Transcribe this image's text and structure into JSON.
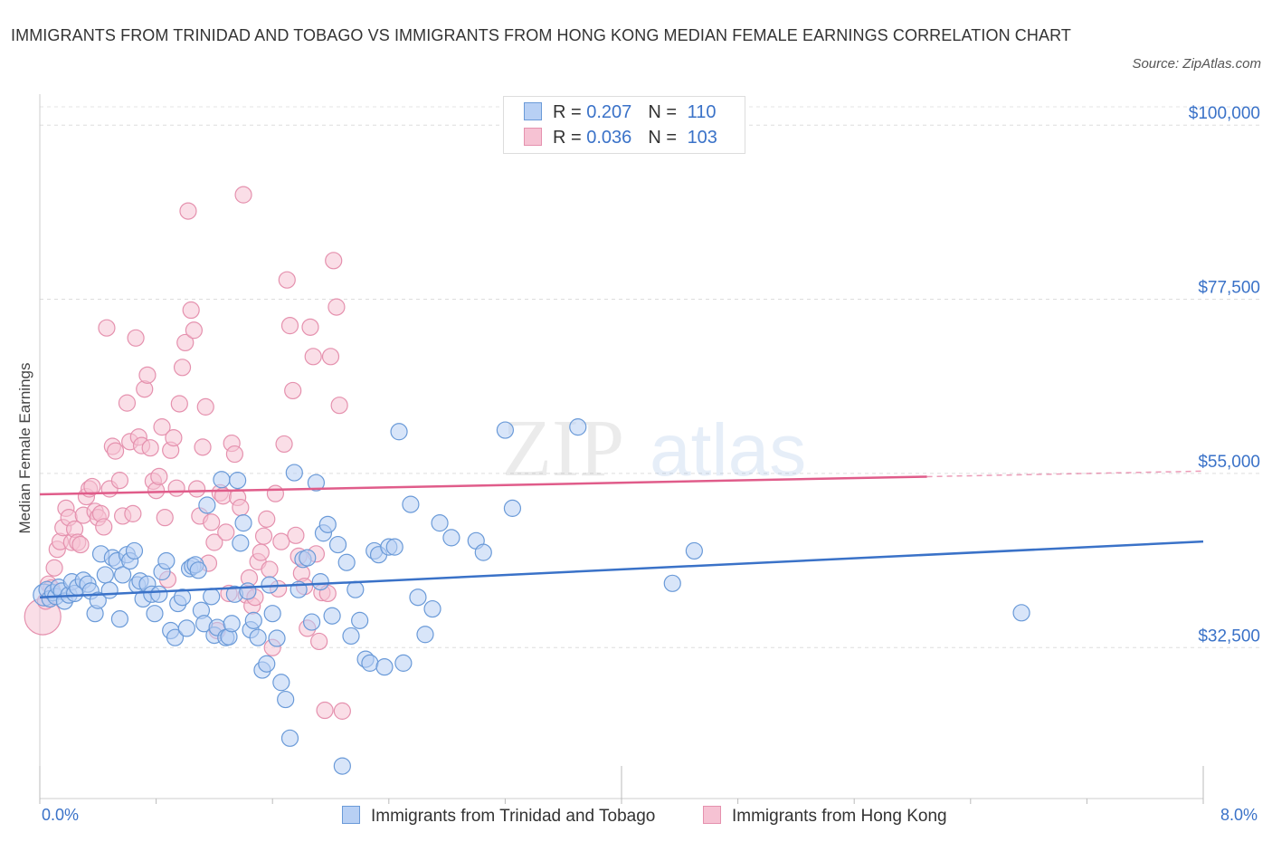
{
  "title": "IMMIGRANTS FROM TRINIDAD AND TOBAGO VS IMMIGRANTS FROM HONG KONG MEDIAN FEMALE EARNINGS CORRELATION CHART",
  "source": "Source: ZipAtlas.com",
  "watermark": "ZIPatlas",
  "colors": {
    "blue": "#3a72c8",
    "blue_fill": "#b8d0f4",
    "pink": "#e05c8a",
    "pink_fill": "#f6c2d3",
    "grid": "#dddddd",
    "axis_label": "#3a72c8"
  },
  "legend_top": {
    "rows": [
      {
        "r_label": "R = ",
        "r_value": "0.207",
        "n_label": "N = ",
        "n_value": "110"
      },
      {
        "r_label": "R = ",
        "r_value": "0.036",
        "n_label": "N = ",
        "n_value": "103"
      }
    ]
  },
  "legend_bottom": {
    "items": [
      "Immigrants from Trinidad and Tobago",
      "Immigrants from Hong Kong"
    ]
  },
  "x_axis": {
    "min_label": "0.0%",
    "max_label": "8.0%"
  },
  "chart_data": {
    "type": "scatter",
    "title": "IMMIGRANTS FROM TRINIDAD AND TOBAGO VS IMMIGRANTS FROM HONG KONG MEDIAN FEMALE EARNINGS CORRELATION CHART",
    "xlabel": "",
    "ylabel": "Median Female Earnings",
    "xlim": [
      0,
      8
    ],
    "ylim": [
      13000,
      104000
    ],
    "y_ticks": [
      {
        "value": 32500,
        "label": "$32,500"
      },
      {
        "value": 55000,
        "label": "$55,000"
      },
      {
        "value": 77500,
        "label": "$77,500"
      },
      {
        "value": 100000,
        "label": "$100,000"
      }
    ],
    "grid": "horizontal dashed",
    "legend_placement": "top-center and bottom",
    "series": [
      {
        "name": "Immigrants from Trinidad and Tobago",
        "color": "#3a72c8",
        "trend": {
          "x": [
            0,
            8
          ],
          "y": [
            39000,
            46200
          ],
          "dashed_from": null
        },
        "points": [
          [
            0.03,
            39300
          ],
          [
            0.05,
            40000
          ],
          [
            0.07,
            38800
          ],
          [
            0.09,
            39600
          ],
          [
            0.11,
            39100
          ],
          [
            0.13,
            40300
          ],
          [
            0.15,
            39800
          ],
          [
            0.17,
            38500
          ],
          [
            0.2,
            39300
          ],
          [
            0.22,
            41000
          ],
          [
            0.24,
            39500
          ],
          [
            0.26,
            40300
          ],
          [
            0.3,
            41200
          ],
          [
            0.33,
            40700
          ],
          [
            0.35,
            39800
          ],
          [
            0.38,
            36900
          ],
          [
            0.4,
            38600
          ],
          [
            0.42,
            44600
          ],
          [
            0.45,
            41900
          ],
          [
            0.48,
            39900
          ],
          [
            0.5,
            44100
          ],
          [
            0.53,
            43700
          ],
          [
            0.55,
            36200
          ],
          [
            0.57,
            41900
          ],
          [
            0.6,
            44500
          ],
          [
            0.62,
            43700
          ],
          [
            0.65,
            45000
          ],
          [
            0.67,
            40600
          ],
          [
            0.69,
            41100
          ],
          [
            0.71,
            38800
          ],
          [
            0.74,
            40700
          ],
          [
            0.77,
            39400
          ],
          [
            0.79,
            36900
          ],
          [
            0.82,
            39400
          ],
          [
            0.84,
            42300
          ],
          [
            0.87,
            43700
          ],
          [
            0.9,
            34700
          ],
          [
            0.93,
            33800
          ],
          [
            0.95,
            38200
          ],
          [
            0.98,
            39000
          ],
          [
            1.01,
            35000
          ],
          [
            1.03,
            42700
          ],
          [
            1.05,
            43000
          ],
          [
            1.07,
            43200
          ],
          [
            1.09,
            42500
          ],
          [
            1.11,
            37300
          ],
          [
            1.13,
            35600
          ],
          [
            1.15,
            50900
          ],
          [
            1.18,
            39100
          ],
          [
            1.2,
            34100
          ],
          [
            1.22,
            35100
          ],
          [
            1.25,
            54200
          ],
          [
            1.28,
            33800
          ],
          [
            1.3,
            33900
          ],
          [
            1.32,
            35600
          ],
          [
            1.34,
            39400
          ],
          [
            1.36,
            54100
          ],
          [
            1.38,
            46000
          ],
          [
            1.4,
            48600
          ],
          [
            1.43,
            39800
          ],
          [
            1.45,
            34800
          ],
          [
            1.47,
            36000
          ],
          [
            1.5,
            33800
          ],
          [
            1.53,
            29600
          ],
          [
            1.56,
            30400
          ],
          [
            1.58,
            40600
          ],
          [
            1.6,
            36900
          ],
          [
            1.63,
            33700
          ],
          [
            1.66,
            28000
          ],
          [
            1.69,
            25800
          ],
          [
            1.72,
            20800
          ],
          [
            1.75,
            55100
          ],
          [
            1.78,
            40000
          ],
          [
            1.81,
            43900
          ],
          [
            1.84,
            44100
          ],
          [
            1.87,
            35800
          ],
          [
            1.9,
            53800
          ],
          [
            1.93,
            41000
          ],
          [
            1.95,
            47300
          ],
          [
            1.98,
            48400
          ],
          [
            2.01,
            36600
          ],
          [
            2.05,
            45800
          ],
          [
            2.08,
            17200
          ],
          [
            2.11,
            43500
          ],
          [
            2.14,
            34000
          ],
          [
            2.17,
            40000
          ],
          [
            2.2,
            36000
          ],
          [
            2.24,
            31000
          ],
          [
            2.27,
            30500
          ],
          [
            2.3,
            45000
          ],
          [
            2.33,
            44500
          ],
          [
            2.37,
            30000
          ],
          [
            2.4,
            45500
          ],
          [
            2.44,
            45500
          ],
          [
            2.47,
            60400
          ],
          [
            2.5,
            30500
          ],
          [
            2.55,
            51000
          ],
          [
            2.6,
            39000
          ],
          [
            2.65,
            34200
          ],
          [
            2.7,
            37500
          ],
          [
            2.75,
            48600
          ],
          [
            2.83,
            46700
          ],
          [
            3.0,
            46300
          ],
          [
            3.05,
            44800
          ],
          [
            3.2,
            60600
          ],
          [
            3.25,
            50500
          ],
          [
            3.7,
            61000
          ],
          [
            4.35,
            40800
          ],
          [
            4.5,
            45000
          ],
          [
            6.75,
            37000
          ]
        ]
      },
      {
        "name": "Immigrants from Hong Kong",
        "color": "#e05c8a",
        "trend": {
          "x": [
            0,
            8
          ],
          "y": [
            52300,
            55300
          ],
          "dashed_from": 6.1
        },
        "points": [
          [
            0.02,
            36500
          ],
          [
            0.04,
            38500
          ],
          [
            0.06,
            40700
          ],
          [
            0.08,
            40200
          ],
          [
            0.1,
            42800
          ],
          [
            0.12,
            45200
          ],
          [
            0.14,
            46200
          ],
          [
            0.16,
            48000
          ],
          [
            0.18,
            50500
          ],
          [
            0.2,
            49300
          ],
          [
            0.22,
            46100
          ],
          [
            0.24,
            47800
          ],
          [
            0.26,
            46100
          ],
          [
            0.28,
            45800
          ],
          [
            0.3,
            49600
          ],
          [
            0.32,
            52000
          ],
          [
            0.34,
            53000
          ],
          [
            0.36,
            53300
          ],
          [
            0.38,
            50100
          ],
          [
            0.4,
            49300
          ],
          [
            0.42,
            49800
          ],
          [
            0.44,
            48100
          ],
          [
            0.46,
            73800
          ],
          [
            0.48,
            53000
          ],
          [
            0.5,
            58500
          ],
          [
            0.52,
            57900
          ],
          [
            0.55,
            54100
          ],
          [
            0.57,
            49500
          ],
          [
            0.6,
            64100
          ],
          [
            0.62,
            59100
          ],
          [
            0.64,
            49800
          ],
          [
            0.66,
            72500
          ],
          [
            0.68,
            59700
          ],
          [
            0.7,
            58600
          ],
          [
            0.72,
            65900
          ],
          [
            0.74,
            67700
          ],
          [
            0.76,
            58300
          ],
          [
            0.78,
            54000
          ],
          [
            0.8,
            52800
          ],
          [
            0.82,
            54600
          ],
          [
            0.84,
            61000
          ],
          [
            0.86,
            49300
          ],
          [
            0.88,
            41300
          ],
          [
            0.9,
            58000
          ],
          [
            0.92,
            59600
          ],
          [
            0.94,
            53100
          ],
          [
            0.96,
            64000
          ],
          [
            0.98,
            68700
          ],
          [
            1.0,
            71900
          ],
          [
            1.02,
            88900
          ],
          [
            1.04,
            76100
          ],
          [
            1.06,
            73500
          ],
          [
            1.08,
            53000
          ],
          [
            1.1,
            49500
          ],
          [
            1.12,
            58400
          ],
          [
            1.14,
            63600
          ],
          [
            1.16,
            43400
          ],
          [
            1.18,
            48700
          ],
          [
            1.2,
            46100
          ],
          [
            1.22,
            34700
          ],
          [
            1.24,
            52500
          ],
          [
            1.26,
            52100
          ],
          [
            1.28,
            47400
          ],
          [
            1.3,
            39500
          ],
          [
            1.32,
            58900
          ],
          [
            1.34,
            57500
          ],
          [
            1.36,
            51900
          ],
          [
            1.38,
            50600
          ],
          [
            1.4,
            91000
          ],
          [
            1.42,
            39300
          ],
          [
            1.44,
            41500
          ],
          [
            1.46,
            37900
          ],
          [
            1.48,
            39000
          ],
          [
            1.5,
            43600
          ],
          [
            1.52,
            44800
          ],
          [
            1.54,
            46900
          ],
          [
            1.56,
            49100
          ],
          [
            1.58,
            42600
          ],
          [
            1.6,
            32500
          ],
          [
            1.62,
            52400
          ],
          [
            1.64,
            40100
          ],
          [
            1.66,
            46200
          ],
          [
            1.68,
            58800
          ],
          [
            1.7,
            80000
          ],
          [
            1.72,
            74100
          ],
          [
            1.74,
            65700
          ],
          [
            1.76,
            47000
          ],
          [
            1.78,
            44300
          ],
          [
            1.8,
            42100
          ],
          [
            1.82,
            40400
          ],
          [
            1.84,
            35000
          ],
          [
            1.86,
            73900
          ],
          [
            1.88,
            70100
          ],
          [
            1.9,
            44600
          ],
          [
            1.92,
            33300
          ],
          [
            1.94,
            39600
          ],
          [
            1.96,
            24400
          ],
          [
            1.98,
            39500
          ],
          [
            2.0,
            70100
          ],
          [
            2.02,
            82500
          ],
          [
            2.04,
            76500
          ],
          [
            2.06,
            63800
          ],
          [
            2.08,
            24300
          ]
        ]
      }
    ]
  }
}
